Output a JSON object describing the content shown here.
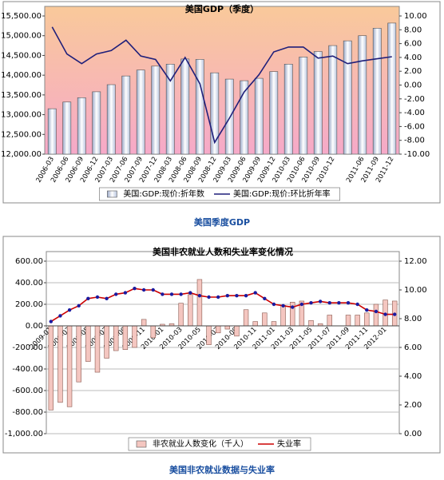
{
  "chart_data": [
    {
      "type": "bar",
      "title": "美国GDP（季度）",
      "caption": "美国季度GDP",
      "categories": [
        "2006-03",
        "2006-06",
        "2006-09",
        "2006-12",
        "2007-03",
        "2007-06",
        "2007-09",
        "2007-12",
        "2008-03",
        "2008-06",
        "2008-09",
        "2008-12",
        "2009-03",
        "2009-06",
        "2009-09",
        "2009-12",
        "2010-03",
        "2010-06",
        "2010-09",
        "2010-12",
        null,
        "2011-06",
        "2011-09",
        "2011-12"
      ],
      "series": [
        {
          "name": "美国:GDP:现价:折年数",
          "color": "#dde6f5",
          "values": [
            13150,
            13320,
            13430,
            13580,
            13760,
            13980,
            14130,
            14230,
            14280,
            14410,
            14400,
            14060,
            13900,
            13860,
            13920,
            14090,
            14280,
            14460,
            14600,
            14750,
            14870,
            15000,
            15190,
            15320
          ]
        },
        {
          "name": "美国:GDP:现价:环比折年率",
          "color": "#1f1f7a",
          "type": "line",
          "axis": "y2",
          "values": [
            8.4,
            4.5,
            3.1,
            4.5,
            5.0,
            6.5,
            4.2,
            3.7,
            0.6,
            4.0,
            0.2,
            -8.3,
            -4.8,
            -1.0,
            1.5,
            4.8,
            5.5,
            5.5,
            3.9,
            4.2,
            3.1,
            3.5,
            3.8,
            4.1
          ]
        }
      ],
      "ylim": [
        12000,
        15500
      ],
      "yticks": [
        {
          "value": 12000,
          "label": "12,000.00"
        },
        {
          "value": 12500,
          "label": "12,500.00"
        },
        {
          "value": 13000,
          "label": "13,000.00"
        },
        {
          "value": 13500,
          "label": "13,500.00"
        },
        {
          "value": 14000,
          "label": "14,000.00"
        },
        {
          "value": 14500,
          "label": "14,500.00"
        },
        {
          "value": 15000,
          "label": "15,000.00"
        },
        {
          "value": 15500,
          "label": "15,500.00"
        }
      ],
      "y2lim": [
        -10,
        10
      ],
      "y2ticks": [
        {
          "value": -10,
          "label": "-10.00"
        },
        {
          "value": -8,
          "label": "-8.00"
        },
        {
          "value": -6,
          "label": "-6.00"
        },
        {
          "value": -4,
          "label": "-4.00"
        },
        {
          "value": -2,
          "label": "-2.00"
        },
        {
          "value": 0,
          "label": "0.00"
        },
        {
          "value": 2,
          "label": "2.00"
        },
        {
          "value": 4,
          "label": "4.00"
        },
        {
          "value": 6,
          "label": "6.00"
        },
        {
          "value": 8,
          "label": "8.00"
        },
        {
          "value": 10,
          "label": "10.00"
        }
      ],
      "grid": false
    },
    {
      "type": "bar",
      "title": "美国非农就业人数和失业率变化情况",
      "caption": "美国非农就业数据与失业率",
      "categories": [
        "2009-01",
        null,
        "2009-03",
        null,
        "2009-05",
        null,
        "2009-07",
        null,
        "2009-09",
        null,
        "2009-11",
        null,
        "2010-01",
        null,
        "2010-03",
        null,
        "2010-05",
        null,
        "2010-07",
        null,
        "2010-09",
        null,
        "2010-11",
        null,
        "2011-01",
        null,
        "2011-03",
        null,
        "2011-05",
        null,
        "2011-07",
        null,
        "2011-09",
        null,
        "2011-11",
        null,
        "2012-01",
        null
      ],
      "series": [
        {
          "name": "非农就业人数变化（千人）",
          "color": "#f4c6c0",
          "values": [
            -780,
            -710,
            -750,
            -520,
            -330,
            -430,
            -300,
            -230,
            -220,
            -200,
            60,
            -110,
            15,
            20,
            210,
            290,
            430,
            -175,
            -65,
            -30,
            -95,
            150,
            40,
            120,
            40,
            190,
            220,
            230,
            50,
            20,
            100,
            0,
            100,
            100,
            120,
            200,
            240,
            230
          ]
        },
        {
          "name": "失业率",
          "color": "#cc0000",
          "type": "line",
          "axis": "y2",
          "values": [
            7.8,
            8.2,
            8.6,
            8.9,
            9.4,
            9.5,
            9.4,
            9.7,
            9.8,
            10.1,
            10.0,
            10.0,
            9.7,
            9.7,
            9.7,
            9.8,
            9.6,
            9.5,
            9.5,
            9.6,
            9.6,
            9.6,
            9.8,
            9.4,
            9.0,
            8.9,
            8.8,
            9.0,
            9.1,
            9.2,
            9.1,
            9.1,
            9.1,
            9.0,
            8.6,
            8.5,
            8.3,
            8.3
          ]
        }
      ],
      "ylim": [
        -1000,
        600
      ],
      "yticks": [
        {
          "value": -1000,
          "label": "-1,000.00"
        },
        {
          "value": -800,
          "label": "-800.00"
        },
        {
          "value": -600,
          "label": "-600.00"
        },
        {
          "value": -400,
          "label": "-400.00"
        },
        {
          "value": -200,
          "label": "-200.00"
        },
        {
          "value": 0,
          "label": "0.00"
        },
        {
          "value": 200,
          "label": "200.00"
        },
        {
          "value": 400,
          "label": "400.00"
        },
        {
          "value": 600,
          "label": "600.00"
        }
      ],
      "y2lim": [
        0,
        12
      ],
      "y2ticks": [
        {
          "value": 0,
          "label": "0.00"
        },
        {
          "value": 2,
          "label": "2.00"
        },
        {
          "value": 4,
          "label": "4.00"
        },
        {
          "value": 6,
          "label": "6.00"
        },
        {
          "value": 8,
          "label": "8.00"
        },
        {
          "value": 10,
          "label": "10.00"
        },
        {
          "value": 12,
          "label": "12.00"
        }
      ],
      "grid": true
    }
  ]
}
